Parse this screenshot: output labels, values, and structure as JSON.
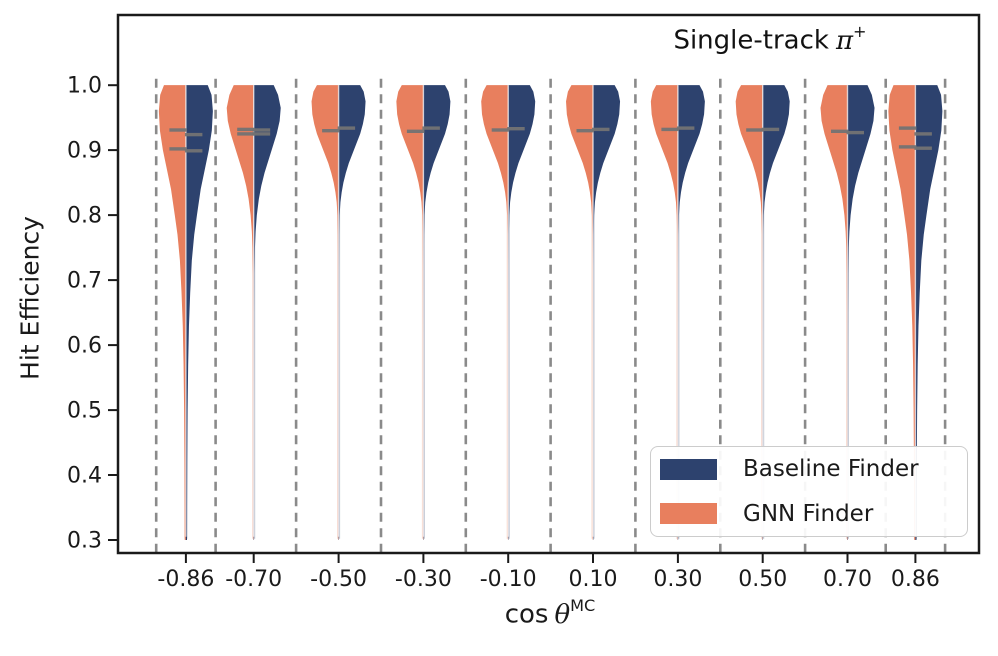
{
  "figure": {
    "title_parts": {
      "text": "Single-track",
      "symbol": "π",
      "sup": "+"
    },
    "xlabel_parts": {
      "text": "cos",
      "symbol": "θ",
      "sup": "MC"
    },
    "ylabel": "Hit Efficiency"
  },
  "legend": {
    "items": [
      {
        "label": "Baseline Finder",
        "color": "#2d426e"
      },
      {
        "label": "GNN Finder",
        "color": "#e87f5e"
      }
    ]
  },
  "chart_data": {
    "type": "violin",
    "title": "Single-track π+",
    "xlabel": "cos θ^MC",
    "ylabel": "Hit Efficiency",
    "legend_position": "lower right",
    "grid": false,
    "categories": [
      -0.86,
      -0.7,
      -0.5,
      -0.3,
      -0.1,
      0.1,
      0.3,
      0.5,
      0.7,
      0.86
    ],
    "x_tick_labels": [
      "-0.86",
      "-0.70",
      "-0.50",
      "-0.30",
      "-0.10",
      "0.10",
      "0.30",
      "0.50",
      "0.70",
      "0.86"
    ],
    "y_ticks": [
      "1.0",
      "0.9",
      "0.8",
      "0.7",
      "0.6",
      "0.5",
      "0.4",
      "0.3"
    ],
    "xlim": [
      -1.02,
      1.01
    ],
    "ylim": [
      0.28,
      1.108
    ],
    "bin_edges": [
      -0.93,
      -0.79,
      -0.6,
      -0.4,
      -0.2,
      0.0,
      0.2,
      0.4,
      0.6,
      0.79,
      0.93
    ],
    "violin_top_value": 1.0,
    "violin_bottom_value": 0.3,
    "series": [
      {
        "name": "Baseline Finder",
        "side": "right",
        "color": "#2d426e",
        "median_marks": [
          [
            0.924,
            0.899
          ],
          [
            0.931,
            0.925
          ],
          [
            0.934
          ],
          [
            0.934
          ],
          [
            0.933
          ],
          [
            0.932
          ],
          [
            0.934
          ],
          [
            0.932
          ],
          [
            0.927
          ],
          [
            0.925,
            0.903
          ]
        ]
      },
      {
        "name": "GNN Finder",
        "side": "left",
        "color": "#e87f5e",
        "median_marks": [
          [
            0.931,
            0.902
          ],
          [
            0.932,
            0.925
          ],
          [
            0.93
          ],
          [
            0.929
          ],
          [
            0.931
          ],
          [
            0.93
          ],
          [
            0.932
          ],
          [
            0.931
          ],
          [
            0.929
          ],
          [
            0.934,
            0.905
          ]
        ]
      }
    ],
    "violin_max_halfwidth_x": 0.0637,
    "violin_profile_by_category": [
      "wide",
      "mid",
      "narrow",
      "narrow",
      "narrow",
      "narrow",
      "narrow",
      "narrow",
      "mid",
      "wide"
    ],
    "profiles": {
      "wide": [
        [
          1.0,
          0.81
        ],
        [
          0.985,
          0.95
        ],
        [
          0.96,
          1.0
        ],
        [
          0.93,
          0.96
        ],
        [
          0.9,
          0.85
        ],
        [
          0.87,
          0.7
        ],
        [
          0.84,
          0.55
        ],
        [
          0.8,
          0.41
        ],
        [
          0.77,
          0.31
        ],
        [
          0.73,
          0.22
        ],
        [
          0.68,
          0.16
        ],
        [
          0.63,
          0.115
        ],
        [
          0.57,
          0.085
        ],
        [
          0.5,
          0.065
        ],
        [
          0.42,
          0.052
        ],
        [
          0.35,
          0.045
        ],
        [
          0.3,
          0.042
        ]
      ],
      "mid": [
        [
          1.0,
          0.74
        ],
        [
          0.985,
          0.9
        ],
        [
          0.965,
          1.0
        ],
        [
          0.945,
          0.96
        ],
        [
          0.925,
          0.85
        ],
        [
          0.905,
          0.7
        ],
        [
          0.885,
          0.55
        ],
        [
          0.865,
          0.4
        ],
        [
          0.845,
          0.28
        ],
        [
          0.825,
          0.19
        ],
        [
          0.8,
          0.115
        ],
        [
          0.775,
          0.07
        ],
        [
          0.75,
          0.045
        ],
        [
          0.71,
          0.028
        ],
        [
          0.65,
          0.02
        ],
        [
          0.5,
          0.014
        ],
        [
          0.3,
          0.012
        ]
      ],
      "narrow": [
        [
          1.0,
          0.8
        ],
        [
          0.99,
          0.93
        ],
        [
          0.975,
          1.0
        ],
        [
          0.955,
          0.97
        ],
        [
          0.94,
          0.9
        ],
        [
          0.925,
          0.8
        ],
        [
          0.91,
          0.66
        ],
        [
          0.895,
          0.52
        ],
        [
          0.88,
          0.38
        ],
        [
          0.865,
          0.27
        ],
        [
          0.85,
          0.18
        ],
        [
          0.835,
          0.115
        ],
        [
          0.82,
          0.07
        ],
        [
          0.8,
          0.04
        ],
        [
          0.77,
          0.025
        ],
        [
          0.72,
          0.018
        ],
        [
          0.6,
          0.013
        ],
        [
          0.45,
          0.011
        ],
        [
          0.3,
          0.01
        ]
      ]
    },
    "colors": {
      "divider": "#8a8a8a",
      "median_mark": "#737373",
      "axis": "#1a1a1a",
      "center_line": "rgba(255,255,255,0.7)"
    }
  }
}
